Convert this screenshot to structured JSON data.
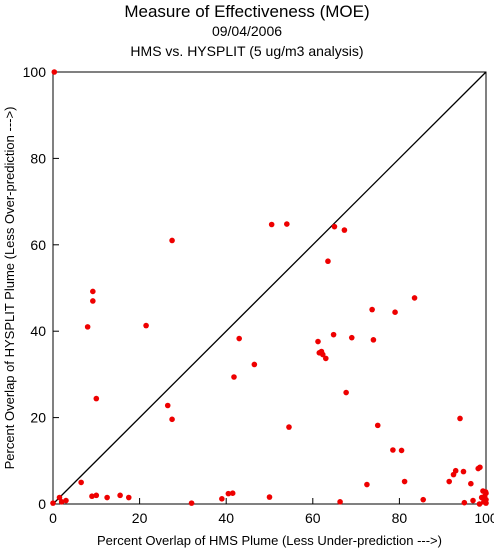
{
  "chart_data": {
    "type": "scatter",
    "title": "Measure of Effectiveness (MOE)",
    "subtitle_date": "09/04/2006",
    "subtitle_analysis": "HMS vs. HYSPLIT  (5 ug/m3 analysis)",
    "xlabel": "Percent Overlap of HMS Plume (Less Under-prediction --->)",
    "ylabel": "Percent Overlap of HYSPLIT Plume (Less Over-prediction --->)",
    "xlim": [
      0,
      100
    ],
    "ylim": [
      0,
      100
    ],
    "xticks": [
      "0",
      "20",
      "40",
      "60",
      "80",
      "100"
    ],
    "yticks": [
      "0",
      "20",
      "40",
      "60",
      "80",
      "100"
    ],
    "reference_line": "y = x diagonal",
    "point_color": "#ee0000",
    "line_color": "#000000",
    "points": [
      [
        0.3,
        100
      ],
      [
        0,
        0.2
      ],
      [
        1.5,
        1.5
      ],
      [
        2,
        0.5
      ],
      [
        3,
        0.8
      ],
      [
        6.5,
        5
      ],
      [
        8,
        41
      ],
      [
        9.2,
        49.2
      ],
      [
        9.2,
        47
      ],
      [
        9,
        1.8
      ],
      [
        10,
        2
      ],
      [
        10,
        24.4
      ],
      [
        12.5,
        1.5
      ],
      [
        15.5,
        2
      ],
      [
        17.5,
        1.5
      ],
      [
        21.5,
        41.3
      ],
      [
        26.5,
        22.8
      ],
      [
        27.5,
        61
      ],
      [
        27.5,
        19.6
      ],
      [
        32,
        0.2
      ],
      [
        39,
        1.2
      ],
      [
        40.5,
        2.4
      ],
      [
        41.5,
        2.5
      ],
      [
        41.8,
        29.4
      ],
      [
        43,
        38.3
      ],
      [
        46.5,
        32.3
      ],
      [
        50,
        1.6
      ],
      [
        50.5,
        64.7
      ],
      [
        54,
        64.8
      ],
      [
        54.5,
        17.8
      ],
      [
        61.2,
        37.6
      ],
      [
        61.5,
        35
      ],
      [
        62,
        35.3
      ],
      [
        62.3,
        34.6
      ],
      [
        63,
        33.7
      ],
      [
        63.5,
        56.2
      ],
      [
        64.8,
        39.2
      ],
      [
        65,
        64.2
      ],
      [
        66.3,
        0.5
      ],
      [
        67.3,
        63.4
      ],
      [
        67.7,
        25.8
      ],
      [
        69,
        38.5
      ],
      [
        72.5,
        4.5
      ],
      [
        73.7,
        45
      ],
      [
        74,
        38
      ],
      [
        75,
        18.2
      ],
      [
        78.5,
        12.5
      ],
      [
        79,
        44.4
      ],
      [
        80.5,
        12.4
      ],
      [
        81.2,
        5.2
      ],
      [
        83.5,
        47.7
      ],
      [
        85.5,
        1
      ],
      [
        91.5,
        5.2
      ],
      [
        92.5,
        6.8
      ],
      [
        93,
        7.7
      ],
      [
        94,
        19.8
      ],
      [
        94.8,
        7.5
      ],
      [
        95,
        0.3
      ],
      [
        96.5,
        4.7
      ],
      [
        97,
        0.8
      ],
      [
        98.2,
        8.2
      ],
      [
        98.6,
        8.5
      ],
      [
        99,
        1.5
      ],
      [
        99.3,
        3
      ],
      [
        99.5,
        0.5
      ],
      [
        99.7,
        1.8
      ],
      [
        99.9,
        2.8
      ],
      [
        100,
        0.2
      ],
      [
        100,
        1
      ],
      [
        100,
        2.5
      ],
      [
        98.5,
        0
      ]
    ]
  }
}
